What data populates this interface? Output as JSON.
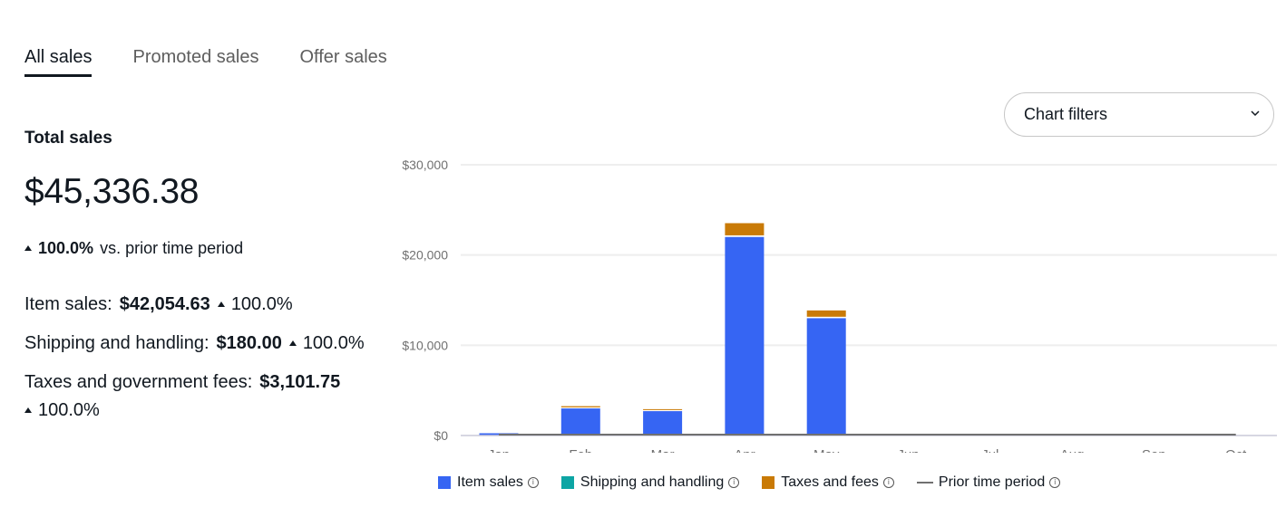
{
  "tabs": [
    {
      "label": "All sales",
      "active": true
    },
    {
      "label": "Promoted sales",
      "active": false
    },
    {
      "label": "Offer sales",
      "active": false
    }
  ],
  "summary": {
    "total_label": "Total sales",
    "total_value": "$45,336.38",
    "change_pct": "100.0%",
    "change_text": "vs. prior time period",
    "item_sales_label": "Item sales:",
    "item_sales_value": "$42,054.63",
    "item_sales_pct": "100.0%",
    "shipping_label": "Shipping and handling:",
    "shipping_value": "$180.00",
    "shipping_pct": "100.0%",
    "taxes_label": "Taxes and government fees:",
    "taxes_value": "$3,101.75",
    "taxes_pct": "100.0%"
  },
  "chart_filters": {
    "label": "Chart filters",
    "icon": "chevron-down-icon"
  },
  "legend": {
    "item_sales": "Item sales",
    "shipping": "Shipping and handling",
    "taxes": "Taxes and fees",
    "prior": "Prior time period"
  },
  "colors": {
    "item_sales": "#3665f3",
    "shipping": "#0da5a4",
    "taxes": "#c97a06",
    "prior": "#707070",
    "grid": "#eeeeee"
  },
  "chart_data": {
    "type": "bar",
    "stacked": true,
    "categories": [
      "Jan",
      "Feb",
      "Mar",
      "Apr",
      "May",
      "Jun",
      "Jul",
      "Aug",
      "Sep",
      "Oct"
    ],
    "series": [
      {
        "name": "Item sales",
        "values": [
          250,
          3000,
          2700,
          22000,
          13000,
          0,
          0,
          0,
          0,
          0
        ]
      },
      {
        "name": "Shipping and handling",
        "values": [
          0,
          20,
          20,
          80,
          60,
          0,
          0,
          0,
          0,
          0
        ]
      },
      {
        "name": "Taxes and fees",
        "values": [
          20,
          230,
          200,
          1450,
          800,
          0,
          0,
          0,
          0,
          0
        ]
      }
    ],
    "prior_time_period": [
      0,
      0,
      0,
      0,
      0,
      0,
      0,
      0,
      0,
      0
    ],
    "yticks": [
      "$0",
      "$10,000",
      "$20,000",
      "$30,000"
    ],
    "ytick_values": [
      0,
      10000,
      20000,
      30000
    ],
    "ylim": [
      0,
      30000
    ],
    "grid": true,
    "legend_position": "bottom"
  }
}
